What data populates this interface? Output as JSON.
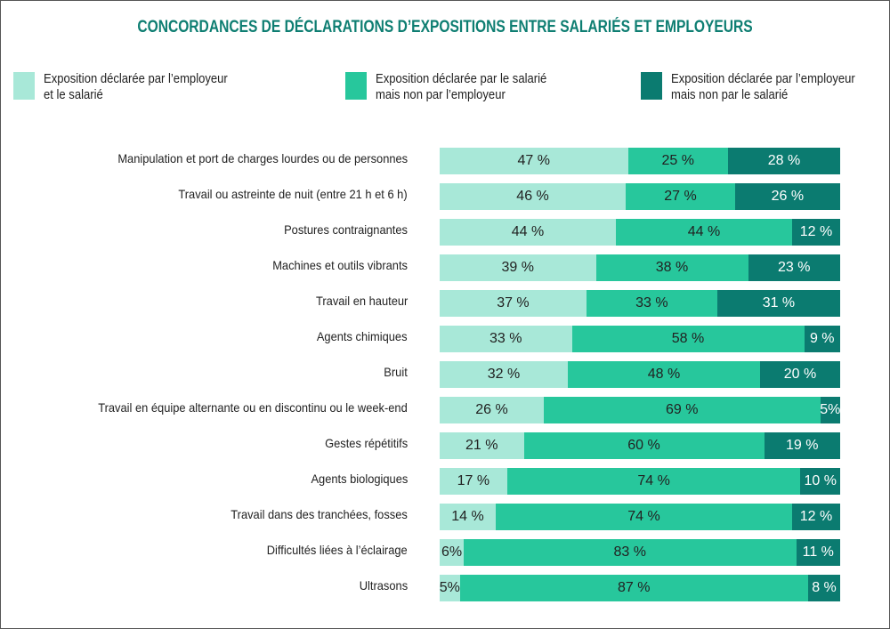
{
  "chart_data": {
    "type": "bar",
    "orientation": "horizontal",
    "stacked": true,
    "title": "CONCORDANCES DE DÉCLARATIONS D’EXPOSITIONS ENTRE SALARIÉS ET EMPLOYEURS",
    "legend_placement": "top",
    "grid": false,
    "xlim": [
      0,
      100
    ],
    "categories": [
      "Manipulation et port de charges lourdes ou de personnes",
      "Travail ou astreinte de nuit (entre 21 h et 6 h)",
      "Postures contraignantes",
      "Machines et outils vibrants",
      "Travail en hauteur",
      "Agents chimiques",
      "Bruit",
      "Travail en équipe alternante ou en discontinu ou le week-end",
      "Gestes répétitifs",
      "Agents biologiques",
      "Travail dans des tranchées, fosses",
      "Difficultés liées à l’éclairage",
      "Ultrasons"
    ],
    "series": [
      {
        "name": "Exposition déclarée par l’employeur\net le salarié",
        "color": "#a8e8d8",
        "values": [
          47,
          46,
          44,
          39,
          37,
          33,
          32,
          26,
          21,
          17,
          14,
          6,
          5
        ],
        "labels": [
          "47 %",
          "46 %",
          "44 %",
          "39 %",
          "37 %",
          "33 %",
          "32 %",
          "26 %",
          "21 %",
          "17 %",
          "14 %",
          "6%",
          "5%"
        ]
      },
      {
        "name": "Exposition déclarée par le salarié\nmais non par l’employeur",
        "color": "#27c79c",
        "values": [
          25,
          27,
          44,
          38,
          33,
          58,
          48,
          69,
          60,
          74,
          74,
          83,
          87
        ],
        "labels": [
          "25 %",
          "27 %",
          "44 %",
          "38 %",
          "33 %",
          "58 %",
          "48 %",
          "69 %",
          "60 %",
          "74 %",
          "74 %",
          "83 %",
          "87 %"
        ]
      },
      {
        "name": "Exposition déclarée par l’employeur\nmais non par le salarié",
        "color": "#0b7b70",
        "values": [
          28,
          26,
          12,
          23,
          31,
          9,
          20,
          5,
          19,
          10,
          12,
          11,
          8
        ],
        "labels": [
          "28 %",
          "26 %",
          "12 %",
          "23 %",
          "31 %",
          "9 %",
          "20 %",
          "5%",
          "19 %",
          "10 %",
          "12 %",
          "11 %",
          "8 %"
        ]
      }
    ]
  }
}
